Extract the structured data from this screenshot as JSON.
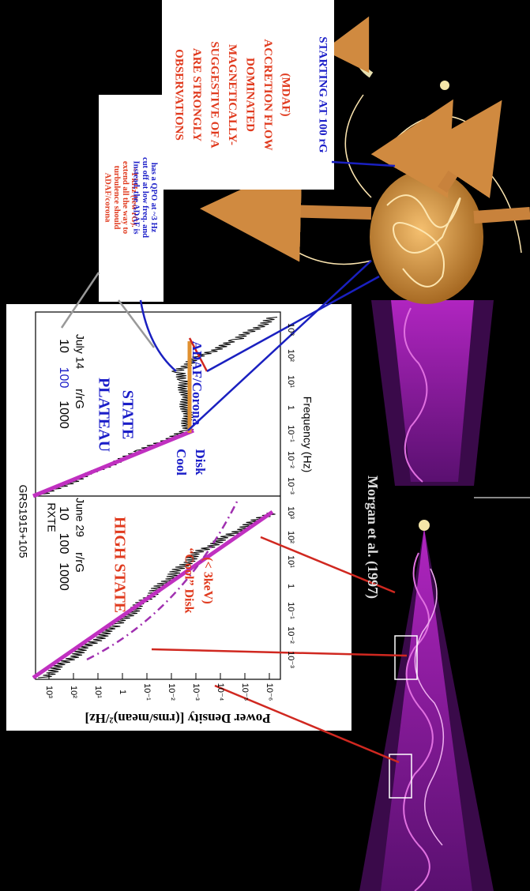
{
  "mdaf_box": {
    "lines": [
      "OBSERVATIONS",
      "ARE STRONGLY",
      "SUGGESTIVE OF A",
      "MAGNETICALLY-",
      "DOMINATED",
      "ACCRETION FLOW",
      "(MDAF)"
    ],
    "last_line": "STARTING AT 100 rG"
  },
  "adaf_box": {
    "red_lines": [
      "ADAF/corona",
      "turbulence should",
      "extend all the way to",
      "~1 kHz (few rG)."
    ],
    "blue_lines": [
      "Instead, the ADAF is",
      "cut off at low freq. and",
      "has a QPO at ~3 Hz"
    ]
  },
  "figure": {
    "source": "GRS1915+105",
    "instrument": "RXTE",
    "left_date": "June 29",
    "right_date": "July 14",
    "radius_label": "r/rG",
    "radius_ticks": [
      "1000",
      "100",
      "10"
    ],
    "y_label": "Power Density [(rms/mean)²/Hz]",
    "y_ticks": [
      "10³",
      "10²",
      "10¹",
      "1",
      "10⁻¹",
      "10⁻²",
      "10⁻³",
      "10⁻⁴",
      "10⁻⁵",
      "10⁻⁶"
    ],
    "x_label": "Frequency (Hz)",
    "x_ticks": [
      "10⁻³",
      "10⁻²",
      "10⁻¹",
      "1",
      "10¹",
      "10²",
      "10³"
    ],
    "high_state": "HIGH STATE",
    "plateau_state": [
      "PLATEAU",
      "STATE"
    ],
    "cool_disk_high": [
      "“Cool” Disk",
      "(< 3keV)"
    ],
    "cool_disk_plateau": [
      "Cool",
      "Disk"
    ],
    "adaf_corona": "ADAF/Corona"
  },
  "credit": "Morgan et al. (1997)"
}
